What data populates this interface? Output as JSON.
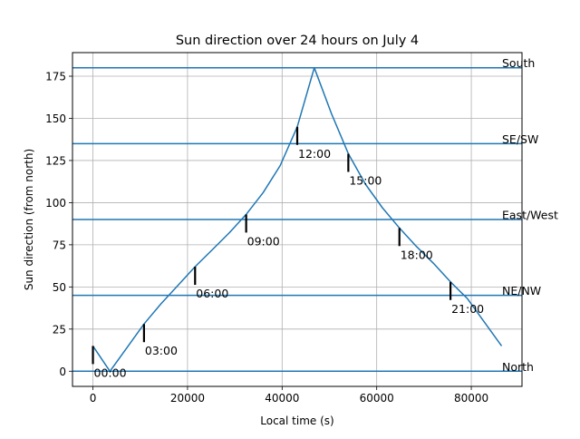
{
  "chart_data": {
    "type": "line",
    "title": "Sun direction over 24 hours on July 4",
    "xlabel": "Local time (s)",
    "ylabel": "Sun direction (from north)",
    "xlim": [
      -4320,
      90720
    ],
    "ylim": [
      -9,
      189
    ],
    "grid": true,
    "xticks": [
      0,
      20000,
      40000,
      60000,
      80000
    ],
    "xtick_labels": [
      "0",
      "20000",
      "40000",
      "60000",
      "80000"
    ],
    "yticks": [
      0,
      25,
      50,
      75,
      100,
      125,
      150,
      175
    ],
    "ytick_labels": [
      "0",
      "25",
      "50",
      "75",
      "100",
      "125",
      "150",
      "175"
    ],
    "colors": {
      "series": "#1f77b4",
      "markers": "#000000",
      "grid": "#b0b0b0"
    },
    "series": [
      {
        "points": [
          [
            0,
            15
          ],
          [
            3600,
            0
          ],
          [
            7200,
            14
          ],
          [
            10800,
            28
          ],
          [
            14400,
            40
          ],
          [
            18000,
            51
          ],
          [
            21600,
            62
          ],
          [
            25200,
            72
          ],
          [
            28800,
            82
          ],
          [
            32400,
            93
          ],
          [
            36000,
            106
          ],
          [
            39600,
            122
          ],
          [
            43200,
            145
          ],
          [
            46800,
            180
          ],
          [
            50400,
            153
          ],
          [
            54000,
            129
          ],
          [
            57600,
            111
          ],
          [
            61200,
            97
          ],
          [
            64800,
            85
          ],
          [
            68400,
            74
          ],
          [
            72000,
            64
          ],
          [
            75600,
            53
          ],
          [
            79200,
            43
          ],
          [
            82800,
            29
          ],
          [
            86400,
            15
          ]
        ]
      }
    ],
    "reference_lines": [
      {
        "y": 0,
        "label": "North"
      },
      {
        "y": 45,
        "label": "NE/NW"
      },
      {
        "y": 90,
        "label": "East/West"
      },
      {
        "y": 135,
        "label": "SE/SW"
      },
      {
        "y": 180,
        "label": "South"
      }
    ],
    "hour_markers": [
      {
        "x": 0,
        "y": 15,
        "label": "00:00"
      },
      {
        "x": 10800,
        "y": 28,
        "label": "03:00"
      },
      {
        "x": 21600,
        "y": 62,
        "label": "06:00"
      },
      {
        "x": 32400,
        "y": 93,
        "label": "09:00"
      },
      {
        "x": 43200,
        "y": 145,
        "label": "12:00"
      },
      {
        "x": 54000,
        "y": 129,
        "label": "15:00"
      },
      {
        "x": 64800,
        "y": 85,
        "label": "18:00"
      },
      {
        "x": 75600,
        "y": 53,
        "label": "21:00"
      }
    ]
  }
}
